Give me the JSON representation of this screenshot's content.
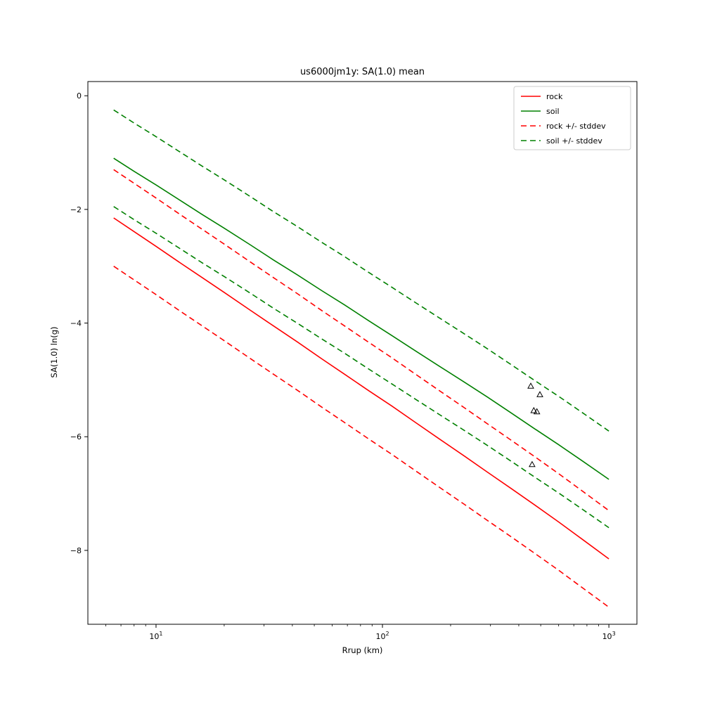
{
  "title": "us6000jm1y: SA(1.0) mean",
  "axes": {
    "xlabel": "Rrup (km)",
    "ylabel": "SA(1.0) ln(g)",
    "x_scale": "log",
    "xlim": [
      5,
      1330
    ],
    "ylim": [
      -9.3,
      0.25
    ],
    "xticks": [
      10,
      100,
      1000
    ],
    "xtick_exponents": [
      "1",
      "2",
      "3"
    ],
    "yticks": [
      0,
      -2,
      -4,
      -6,
      -8
    ],
    "ytick_labels": [
      "0",
      "−2",
      "−4",
      "−6",
      "−8"
    ]
  },
  "chart_data": {
    "type": "line",
    "title": "us6000jm1y: SA(1.0) mean",
    "xlabel": "Rrup (km)",
    "ylabel": "SA(1.0) ln(g)",
    "x_scale": "log",
    "xlim": [
      5,
      1330
    ],
    "ylim": [
      -9.3,
      0.25
    ],
    "grid": false,
    "legend_position": "upper right",
    "stddev": 0.85,
    "x": [
      6.5,
      8,
      10,
      13,
      16,
      20,
      26,
      33,
      42,
      54,
      68,
      87,
      110,
      140,
      180,
      230,
      290,
      370,
      470,
      600,
      760,
      1000
    ],
    "series": [
      {
        "id": "rock",
        "name": "rock",
        "color": "#ff0000",
        "style": "solid",
        "values": [
          -2.15,
          -2.39,
          -2.65,
          -2.96,
          -3.2,
          -3.46,
          -3.77,
          -4.05,
          -4.33,
          -4.63,
          -4.9,
          -5.19,
          -5.46,
          -5.75,
          -6.05,
          -6.34,
          -6.62,
          -6.91,
          -7.2,
          -7.5,
          -7.8,
          -8.15
        ]
      },
      {
        "id": "soil",
        "name": "soil",
        "color": "#008000",
        "style": "solid",
        "values": [
          -1.1,
          -1.33,
          -1.57,
          -1.86,
          -2.09,
          -2.33,
          -2.62,
          -2.89,
          -3.15,
          -3.43,
          -3.68,
          -3.96,
          -4.22,
          -4.49,
          -4.77,
          -5.04,
          -5.3,
          -5.58,
          -5.86,
          -6.14,
          -6.42,
          -6.75
        ]
      },
      {
        "id": "rock-plus-stddev",
        "name": "rock +/- stddev",
        "color": "#ff0000",
        "style": "dashed",
        "values": [
          -1.3,
          -1.54,
          -1.8,
          -2.11,
          -2.35,
          -2.61,
          -2.92,
          -3.2,
          -3.48,
          -3.78,
          -4.05,
          -4.34,
          -4.61,
          -4.9,
          -5.2,
          -5.49,
          -5.77,
          -6.06,
          -6.35,
          -6.65,
          -6.95,
          -7.3
        ]
      },
      {
        "id": "rock-minus-stddev",
        "name": "rock +/- stddev",
        "color": "#ff0000",
        "style": "dashed",
        "values": [
          -3.0,
          -3.24,
          -3.5,
          -3.81,
          -4.05,
          -4.31,
          -4.62,
          -4.9,
          -5.18,
          -5.48,
          -5.75,
          -6.04,
          -6.31,
          -6.6,
          -6.9,
          -7.19,
          -7.47,
          -7.76,
          -8.05,
          -8.35,
          -8.65,
          -9.0
        ]
      },
      {
        "id": "soil-plus-stddev",
        "name": "soil +/- stddev",
        "color": "#008000",
        "style": "dashed",
        "values": [
          -0.25,
          -0.48,
          -0.72,
          -1.01,
          -1.24,
          -1.48,
          -1.77,
          -2.04,
          -2.3,
          -2.58,
          -2.83,
          -3.11,
          -3.37,
          -3.64,
          -3.92,
          -4.19,
          -4.45,
          -4.73,
          -5.01,
          -5.29,
          -5.57,
          -5.9
        ]
      },
      {
        "id": "soil-minus-stddev",
        "name": "soil +/- stddev",
        "color": "#008000",
        "style": "dashed",
        "values": [
          -1.95,
          -2.18,
          -2.42,
          -2.71,
          -2.94,
          -3.18,
          -3.47,
          -3.74,
          -4.0,
          -4.28,
          -4.53,
          -4.81,
          -5.07,
          -5.34,
          -5.62,
          -5.89,
          -6.15,
          -6.43,
          -6.71,
          -6.99,
          -7.27,
          -7.6
        ]
      }
    ],
    "scatter": {
      "marker": "triangle-up",
      "color": "#000000",
      "points": [
        [
          452,
          -5.11
        ],
        [
          496,
          -5.26
        ],
        [
          466,
          -5.54
        ],
        [
          481,
          -5.56
        ],
        [
          458,
          -6.49
        ]
      ]
    }
  },
  "legend": {
    "items": [
      {
        "label": "rock",
        "color": "#ff0000",
        "dash": false
      },
      {
        "label": "soil",
        "color": "#008000",
        "dash": false
      },
      {
        "label": "rock +/- stddev",
        "color": "#ff0000",
        "dash": true
      },
      {
        "label": "soil +/- stddev",
        "color": "#008000",
        "dash": true
      }
    ]
  }
}
